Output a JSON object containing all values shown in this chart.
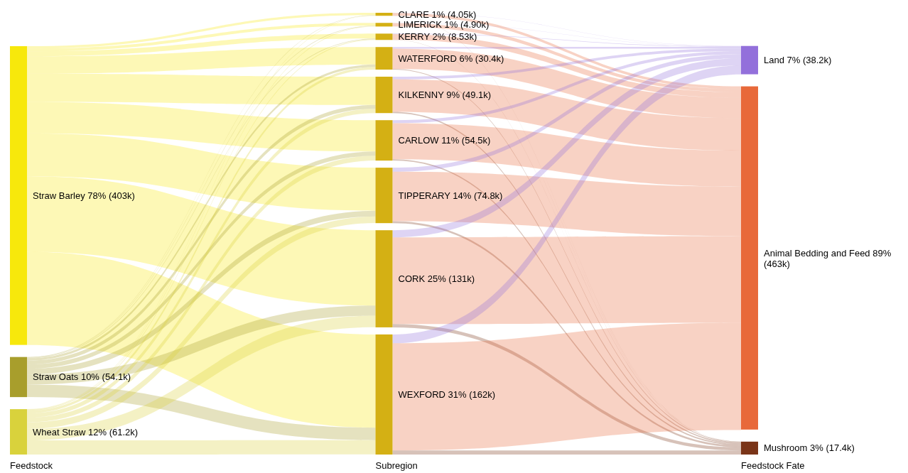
{
  "chart_data": [
    {
      "type": "other",
      "xlabel": "Feedstock",
      "categories": [
        "Straw Barley 78%",
        "Straw Oats 10%",
        "Wheat Straw 12%"
      ],
      "values": [
        403,
        54.1,
        61.2
      ],
      "value_labels": [
        "(403k)",
        "(54.1k)",
        "(61.2k)"
      ],
      "colors": [
        "#f7e80c",
        "#a89e2c",
        "#d9d23c"
      ]
    },
    {
      "type": "other",
      "xlabel": "Subregion",
      "categories": [
        "CLARE 1%",
        "LIMERICK 1%",
        "KERRY 2%",
        "WATERFORD 6%",
        "KILKENNY 9%",
        "CARLOW 11%",
        "TIPPERARY 14%",
        "CORK 25%",
        "WEXFORD 31%"
      ],
      "values": [
        4.05,
        4.9,
        8.53,
        30.4,
        49.1,
        54.5,
        74.8,
        131,
        162
      ],
      "value_labels": [
        "(4.05k)",
        "(4.90k)",
        "(8.53k)",
        "(30.4k)",
        "(49.1k)",
        "(54.5k)",
        "(74.8k)",
        "(131k)",
        "(162k)"
      ],
      "colors": [
        "#d4b014",
        "#d4b014",
        "#d4b014",
        "#d4b014",
        "#d4b014",
        "#d4b014",
        "#d4b014",
        "#d4b014",
        "#d4b014"
      ]
    },
    {
      "type": "other",
      "xlabel": "Feedstock Fate",
      "categories": [
        "Land 7%",
        "Animal Bedding and Feed 89%",
        "Mushroom 3%"
      ],
      "values": [
        38.2,
        463,
        17.4
      ],
      "value_labels": [
        "(38.2k)",
        "(463k)",
        "(17.4k)"
      ],
      "colors": [
        "#9370db",
        "#e8693a",
        "#7a3418"
      ]
    }
  ]
}
